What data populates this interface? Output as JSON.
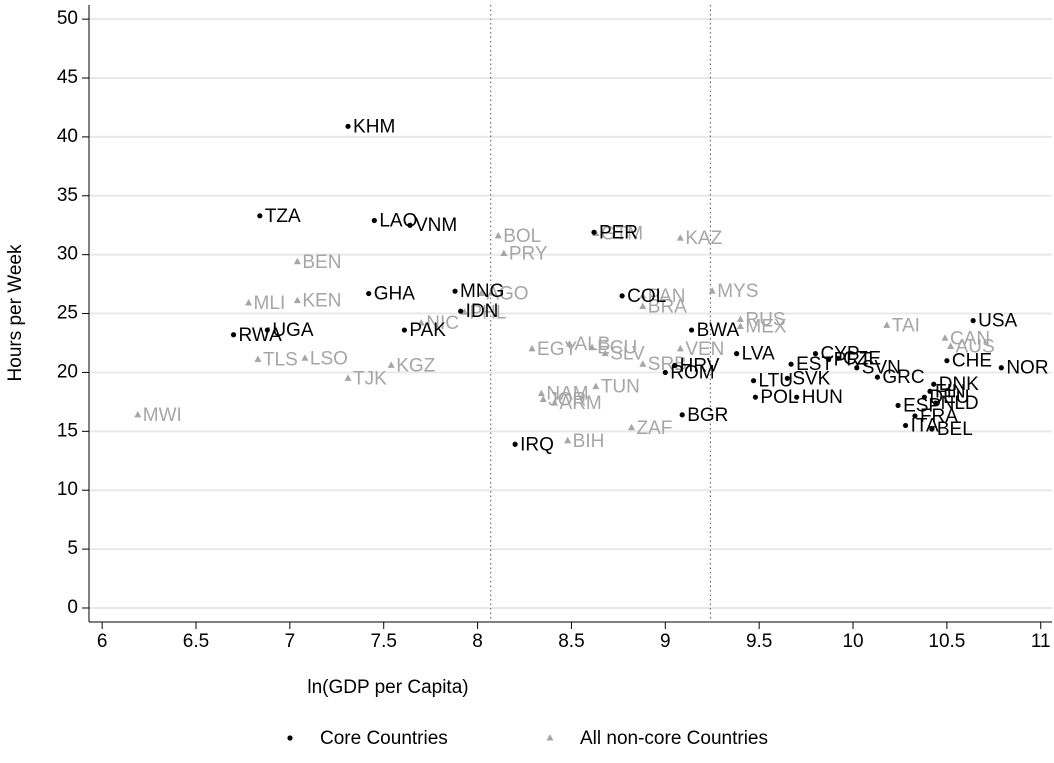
{
  "chart_data": {
    "type": "scatter",
    "x_label": "ln(GDP per Capita)",
    "y_label": "Hours per Week",
    "xlim": [
      5.93,
      11.06
    ],
    "ylim": [
      -1.19,
      51.2
    ],
    "xticks": [
      6,
      6.5,
      7,
      7.5,
      8,
      8.5,
      9,
      9.5,
      10,
      10.5,
      11
    ],
    "yticks": [
      0,
      5,
      10,
      15,
      20,
      25,
      30,
      35,
      40,
      45,
      50
    ],
    "grid": true,
    "vlines": [
      8.07,
      9.24
    ],
    "legend": "bottom",
    "series": [
      {
        "name": "Core Countries",
        "color": "#000000",
        "marker": "circle",
        "labels": [
          "KHM",
          "TZA",
          "LAO",
          "VNM",
          "PER",
          "GHA",
          "MNG",
          "COL",
          "IDN",
          "USA",
          "PAK",
          "BWA",
          "RWA",
          "UGA",
          "LVA",
          "CYP",
          "PRT",
          "CZE",
          "CHE",
          "NOR",
          "EST",
          "HRV",
          "ROM",
          "SVN",
          "GRC",
          "SVK",
          "LTU",
          "POL",
          "HUN",
          "DNK",
          "FIN",
          "DEU",
          "ESP",
          "NLD",
          "ITA",
          "FRA",
          "BEL",
          "BGR",
          "IRQ"
        ],
        "x": [
          7.31,
          6.84,
          7.45,
          7.64,
          8.62,
          7.42,
          7.88,
          8.77,
          7.91,
          10.64,
          7.61,
          9.14,
          6.7,
          6.88,
          9.38,
          9.8,
          9.87,
          9.92,
          10.5,
          10.79,
          9.67,
          9.05,
          9.0,
          10.02,
          10.13,
          9.65,
          9.47,
          9.48,
          9.7,
          10.43,
          10.41,
          10.38,
          10.24,
          10.44,
          10.28,
          10.33,
          10.42,
          9.09,
          8.2
        ],
        "values": [
          40.9,
          33.3,
          32.9,
          32.5,
          31.9,
          26.7,
          26.9,
          26.5,
          25.2,
          24.4,
          23.6,
          23.6,
          23.2,
          23.6,
          21.6,
          21.6,
          21.1,
          21.2,
          21.0,
          20.4,
          20.7,
          20.6,
          20.0,
          20.4,
          19.6,
          19.5,
          19.3,
          17.9,
          17.9,
          19.0,
          18.4,
          17.9,
          17.2,
          17.4,
          15.5,
          16.3,
          15.2,
          16.4,
          13.9
        ]
      },
      {
        "name": "All non-core Countries",
        "color": "#a6a6a6",
        "marker": "triangle",
        "labels": [
          "MWI",
          "BEN",
          "MLI",
          "KEN",
          "TLS",
          "LSO",
          "TJK",
          "KGZ",
          "NIC",
          "PHL",
          "BOL",
          "PRY",
          "AGO",
          "GTM",
          "KAZ",
          "PAN",
          "BRA",
          "MYS",
          "RUS",
          "MEX",
          "TAI",
          "CAN",
          "AUS",
          "EGY",
          "ALB",
          "ECU",
          "SLV",
          "VEN",
          "SRB",
          "TUN",
          "NAM",
          "JOR",
          "ARM",
          "ZAF",
          "BIH"
        ],
        "x": [
          6.19,
          7.04,
          6.78,
          7.04,
          6.83,
          7.08,
          7.31,
          7.54,
          7.7,
          7.93,
          8.11,
          8.14,
          8.02,
          8.63,
          9.08,
          8.88,
          8.88,
          9.25,
          9.4,
          9.4,
          10.18,
          10.49,
          10.52,
          8.29,
          8.49,
          8.61,
          8.68,
          9.08,
          8.88,
          8.63,
          8.34,
          8.35,
          8.41,
          8.82,
          8.48
        ],
        "values": [
          16.4,
          29.4,
          25.9,
          26.1,
          21.1,
          21.2,
          19.5,
          20.6,
          24.2,
          25.1,
          31.6,
          30.1,
          26.7,
          31.8,
          31.4,
          26.5,
          25.6,
          26.9,
          24.5,
          23.9,
          24.0,
          22.9,
          22.2,
          22.0,
          22.4,
          22.1,
          21.6,
          22.0,
          20.7,
          18.8,
          18.2,
          17.7,
          17.4,
          15.3,
          14.2
        ]
      }
    ]
  }
}
